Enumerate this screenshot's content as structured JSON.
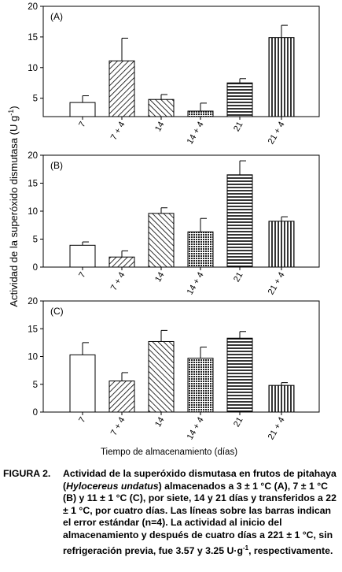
{
  "chart_data": [
    {
      "type": "bar",
      "panel_label": "(A)",
      "categories": [
        "7",
        "7 + 4",
        "14",
        "14 + 4",
        "21",
        "21 + 4"
      ],
      "values": [
        4.3,
        11.1,
        4.8,
        2.9,
        7.5,
        14.9
      ],
      "errors": [
        1.1,
        3.7,
        0.8,
        1.3,
        0.7,
        2.0
      ],
      "ylim": [
        2,
        20
      ],
      "yticks": [
        5,
        10,
        15,
        20
      ],
      "patterns": [
        "none",
        "diag-up",
        "diag-down",
        "cross-dense",
        "horiz",
        "vert"
      ]
    },
    {
      "type": "bar",
      "panel_label": "(B)",
      "categories": [
        "7",
        "7 + 4",
        "14",
        "14 + 4",
        "21",
        "21 + 4"
      ],
      "values": [
        3.9,
        1.8,
        9.6,
        6.3,
        16.5,
        8.2
      ],
      "errors": [
        0.6,
        1.1,
        1.0,
        2.4,
        2.5,
        0.8
      ],
      "ylim": [
        0,
        20
      ],
      "yticks": [
        0,
        5,
        10,
        15,
        20
      ],
      "patterns": [
        "none",
        "diag-up",
        "diag-down",
        "cross-dense",
        "horiz",
        "vert"
      ]
    },
    {
      "type": "bar",
      "panel_label": "(C)",
      "categories": [
        "7",
        "7 + 4",
        "14",
        "14 + 4",
        "21",
        "21 + 4"
      ],
      "values": [
        10.3,
        5.6,
        12.7,
        9.7,
        13.3,
        4.8
      ],
      "errors": [
        2.2,
        1.5,
        2.0,
        2.0,
        1.2,
        0.5
      ],
      "ylim": [
        0,
        20
      ],
      "yticks": [
        0,
        5,
        10,
        15,
        20
      ],
      "patterns": [
        "none",
        "diag-up",
        "diag-down",
        "cross-dense",
        "horiz",
        "vert"
      ]
    }
  ],
  "ylabel_main": "Actividad de la superóxido dismutasa (U g",
  "ylabel_sup": "-1",
  "ylabel_close": ")",
  "xlabel": "Tiempo de almacenamiento (días)",
  "caption": {
    "lead": "FIGURA 2.",
    "text_1": "Actividad de la superóxido dismutasa en frutos de pitahaya (",
    "species": "Hylocereus undatus",
    "text_2": ") almacenados a 3 ± 1 °C (A), 7 ± 1 °C (B) y 11 ± 1 °C (C), por siete, 14 y 21 días y transferidos a 22 ± 1 °C, por cuatro días. Las líneas sobre las barras indican el error estándar (n=4). La actividad al inicio del almacenamiento y después de cuatro días a 221 ± 1 °C, sin refrigeración previa, fue 3.57 y 3.25 U·g",
    "unit_sup": "-1",
    "text_3": ", respectivamente."
  }
}
